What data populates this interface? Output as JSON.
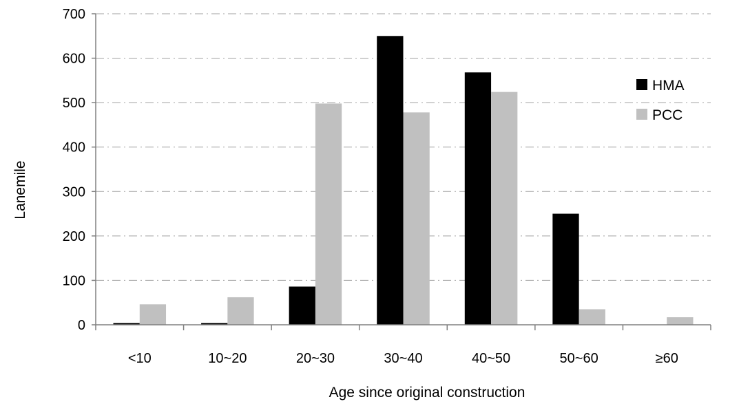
{
  "chart_data": {
    "type": "bar",
    "title": "",
    "xlabel": "Age since original construction",
    "ylabel": "Lanemile",
    "categories": [
      "<10",
      "10~20",
      "20~30",
      "30~40",
      "40~50",
      "50~60",
      "≥60"
    ],
    "series": [
      {
        "name": "HMA",
        "color": "#000000",
        "values": [
          4,
          4,
          86,
          650,
          568,
          250,
          0
        ]
      },
      {
        "name": "PCC",
        "color": "#c0c0c0",
        "values": [
          46,
          62,
          498,
          478,
          524,
          35,
          17
        ]
      }
    ],
    "ylim": [
      0,
      700
    ],
    "yticks": [
      0,
      100,
      200,
      300,
      400,
      500,
      600,
      700
    ],
    "yticklabels": [
      "0",
      "100",
      "200",
      "300",
      "400",
      "500",
      "600",
      "700"
    ],
    "grid": true,
    "legend": {
      "position": "top-right"
    }
  }
}
